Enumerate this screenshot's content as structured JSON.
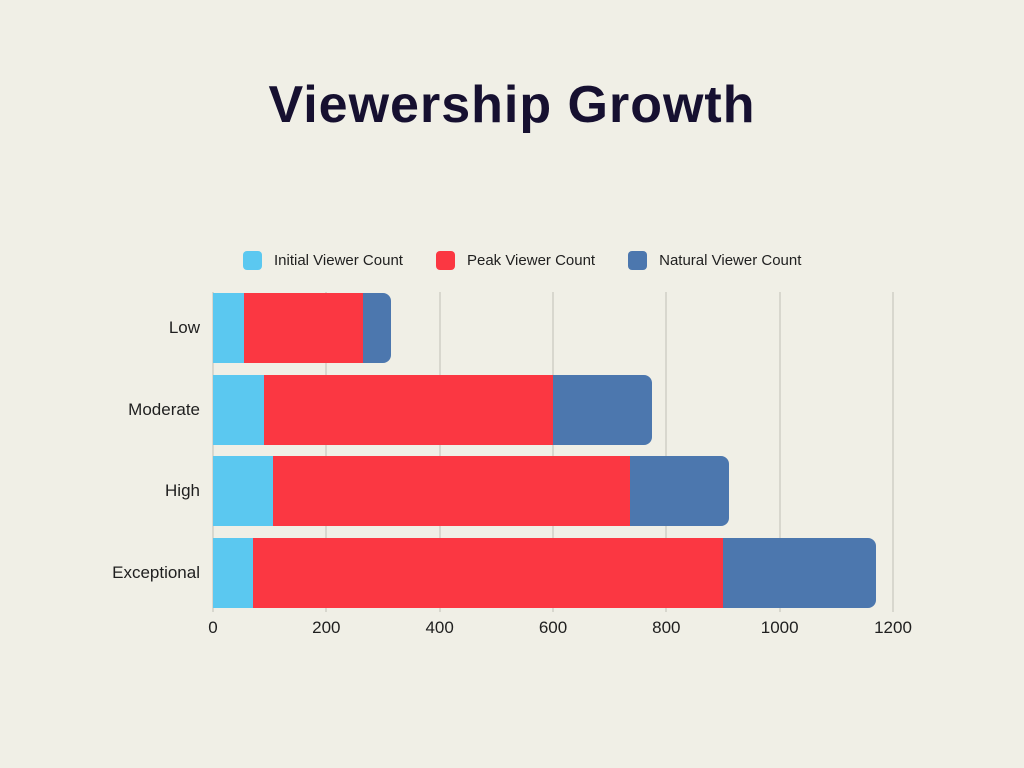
{
  "page": {
    "background": "#F0EFE6",
    "title_color": "#161030",
    "text_color": "#1F1F1F",
    "grid_color": "#D8D7CE"
  },
  "title": "Viewership Growth",
  "chart_data": {
    "type": "bar",
    "orientation": "horizontal",
    "stacked": true,
    "title": "Viewership Growth",
    "categories": [
      "Low",
      "Moderate",
      "High",
      "Exceptional"
    ],
    "series": [
      {
        "name": "Initial Viewer Count",
        "color": "#5BC8F0",
        "values": [
          55,
          90,
          105,
          70
        ]
      },
      {
        "name": "Peak Viewer Count",
        "color": "#FB3742",
        "values": [
          210,
          510,
          630,
          830
        ]
      },
      {
        "name": "Natural Viewer Count",
        "color": "#4C77AE",
        "values": [
          50,
          175,
          175,
          270
        ]
      }
    ],
    "totals": [
      315,
      775,
      910,
      1170
    ],
    "xlabel": "",
    "ylabel": "",
    "xlim": [
      0,
      1200
    ],
    "xticks": [
      0,
      200,
      400,
      600,
      800,
      1000,
      1200
    ],
    "grid": true,
    "legend_position": "top"
  }
}
